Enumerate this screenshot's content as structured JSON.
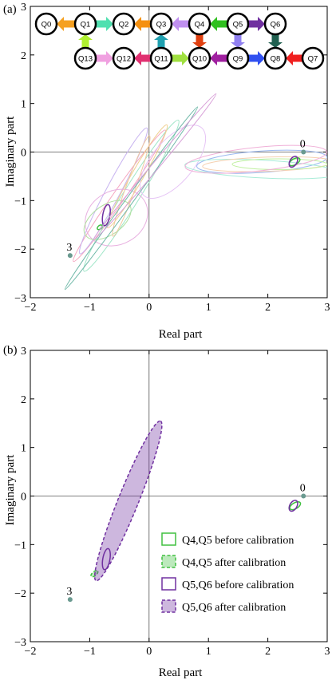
{
  "chart_data": [
    {
      "type": "scatter",
      "panel_label": "(a)",
      "xlabel": "Real part",
      "ylabel": "Imaginary part",
      "xlim": [
        -2,
        3
      ],
      "ylim": [
        -3,
        3
      ],
      "x_ticks": [
        -2,
        -1,
        0,
        1,
        2,
        3
      ],
      "y_ticks": [
        -3,
        -2,
        -1,
        0,
        1,
        2,
        3
      ],
      "point_labels": [
        {
          "text": "0",
          "x": 2.6,
          "y": 0.0
        },
        {
          "text": "3",
          "x": -1.33,
          "y": -2.13
        }
      ],
      "qubit_chain": {
        "top_row": [
          "Q0",
          "Q1",
          "Q2",
          "Q3",
          "Q4",
          "Q5",
          "Q6"
        ],
        "bottom_row": [
          "Q13",
          "Q12",
          "Q11",
          "Q10",
          "Q9",
          "Q8",
          "Q7"
        ]
      },
      "series": [
        {
          "kind": "ellipse",
          "cx": -0.5,
          "cy": -0.9,
          "rx": 1.35,
          "ry": 0.1,
          "angle": 55,
          "color": "#f5a6c0"
        },
        {
          "kind": "ellipse",
          "cx": -0.3,
          "cy": -0.9,
          "rx": 1.5,
          "ry": 0.14,
          "angle": 58,
          "color": "#a0e6c8"
        },
        {
          "kind": "ellipse",
          "cx": -0.6,
          "cy": -0.8,
          "rx": 1.2,
          "ry": 0.12,
          "angle": 62,
          "color": "#c8b4f0"
        },
        {
          "kind": "ellipse",
          "cx": -0.2,
          "cy": -0.5,
          "rx": 1.0,
          "ry": 0.1,
          "angle": 60,
          "color": "#f0d090"
        },
        {
          "kind": "ellipse",
          "cx": -0.55,
          "cy": -1.35,
          "rx": 0.55,
          "ry": 0.45,
          "angle": 30,
          "color": "#e8b0e0"
        },
        {
          "kind": "ellipse",
          "cx": -0.7,
          "cy": -1.4,
          "rx": 0.45,
          "ry": 0.25,
          "angle": 35,
          "color": "#b0e0a0"
        },
        {
          "kind": "ellipse",
          "cx": -0.3,
          "cy": -0.7,
          "rx": 0.9,
          "ry": 0.08,
          "angle": 70,
          "color": "#f0c8a0"
        },
        {
          "kind": "ellipse",
          "cx": 0.4,
          "cy": -0.2,
          "rx": 0.75,
          "ry": 0.35,
          "angle": 50,
          "color": "#e6c4f5"
        },
        {
          "kind": "ellipse",
          "cx": 1.9,
          "cy": -0.2,
          "rx": 1.1,
          "ry": 0.18,
          "angle": 4,
          "color": "#9ab8f0"
        },
        {
          "kind": "ellipse",
          "cx": 1.9,
          "cy": -0.35,
          "rx": 1.3,
          "ry": 0.15,
          "angle": -3,
          "color": "#a8ecd8"
        },
        {
          "kind": "ellipse",
          "cx": 2.0,
          "cy": -0.25,
          "rx": 1.1,
          "ry": 0.12,
          "angle": 2,
          "color": "#f5d0b0"
        },
        {
          "kind": "ellipse",
          "cx": 2.2,
          "cy": -0.25,
          "rx": 0.8,
          "ry": 0.09,
          "angle": 0,
          "color": "#c0f0a0"
        },
        {
          "kind": "ellipse",
          "cx": 1.8,
          "cy": -0.15,
          "rx": 1.2,
          "ry": 0.2,
          "angle": 6,
          "color": "#f0b0d8"
        },
        {
          "kind": "ellipse",
          "cx": 2.45,
          "cy": -0.2,
          "rx": 0.1,
          "ry": 0.05,
          "angle": 30,
          "color": "#40c040"
        },
        {
          "kind": "ellipse",
          "cx": 2.43,
          "cy": -0.2,
          "rx": 0.1,
          "ry": 0.06,
          "angle": 60,
          "color": "#7030a0"
        },
        {
          "kind": "ellipse",
          "cx": -0.72,
          "cy": -1.3,
          "rx": 0.18,
          "ry": 0.06,
          "angle": 80,
          "color": "#7030a0"
        },
        {
          "kind": "ellipse",
          "cx": -0.83,
          "cy": -1.55,
          "rx": 0.05,
          "ry": 0.03,
          "angle": 40,
          "color": "#40c040"
        },
        {
          "kind": "ellipse",
          "cx": -0.3,
          "cy": -0.95,
          "rx": 1.9,
          "ry": 0.06,
          "angle": 54,
          "color": "#6fb8a8"
        },
        {
          "kind": "ellipse",
          "cx": 0.1,
          "cy": -0.3,
          "rx": 1.6,
          "ry": 0.06,
          "angle": 50,
          "color": "#d8a0d8"
        }
      ]
    },
    {
      "type": "scatter",
      "panel_label": "(b)",
      "xlabel": "Real part",
      "ylabel": "Imaginary part",
      "xlim": [
        -2,
        3
      ],
      "ylim": [
        -3,
        3
      ],
      "x_ticks": [
        -2,
        -1,
        0,
        1,
        2,
        3
      ],
      "y_ticks": [
        -3,
        -2,
        -1,
        0,
        1,
        2,
        3
      ],
      "point_labels": [
        {
          "text": "0",
          "x": 2.6,
          "y": 0.0
        },
        {
          "text": "3",
          "x": -1.33,
          "y": -2.13
        }
      ],
      "legend_position": "bottom-right",
      "series": [
        {
          "name": "Q4,Q5 before calibration",
          "color": "#40c040",
          "style": "solid",
          "fill": false,
          "ellipses": [
            {
              "cx": 2.46,
              "cy": -0.2,
              "rx": 0.1,
              "ry": 0.05,
              "angle": 30
            }
          ]
        },
        {
          "name": "Q4,Q5 after calibration",
          "color": "#40c040",
          "style": "dashed",
          "fill": true,
          "ellipses": [
            {
              "cx": -0.92,
              "cy": -1.6,
              "rx": 0.07,
              "ry": 0.035,
              "angle": 40
            }
          ]
        },
        {
          "name": "Q5,Q6 before calibration",
          "color": "#7030a0",
          "style": "solid",
          "fill": false,
          "ellipses": [
            {
              "cx": 2.43,
              "cy": -0.2,
              "rx": 0.1,
              "ry": 0.06,
              "angle": 60
            },
            {
              "cx": -0.72,
              "cy": -1.3,
              "rx": 0.18,
              "ry": 0.06,
              "angle": 80
            }
          ]
        },
        {
          "name": "Q5,Q6 after calibration",
          "color": "#7030a0",
          "style": "dashed",
          "fill": true,
          "ellipses": [
            {
              "cx": -0.35,
              "cy": -0.1,
              "rx": 1.45,
              "ry": 0.17,
              "angle": 68
            }
          ]
        }
      ]
    }
  ]
}
